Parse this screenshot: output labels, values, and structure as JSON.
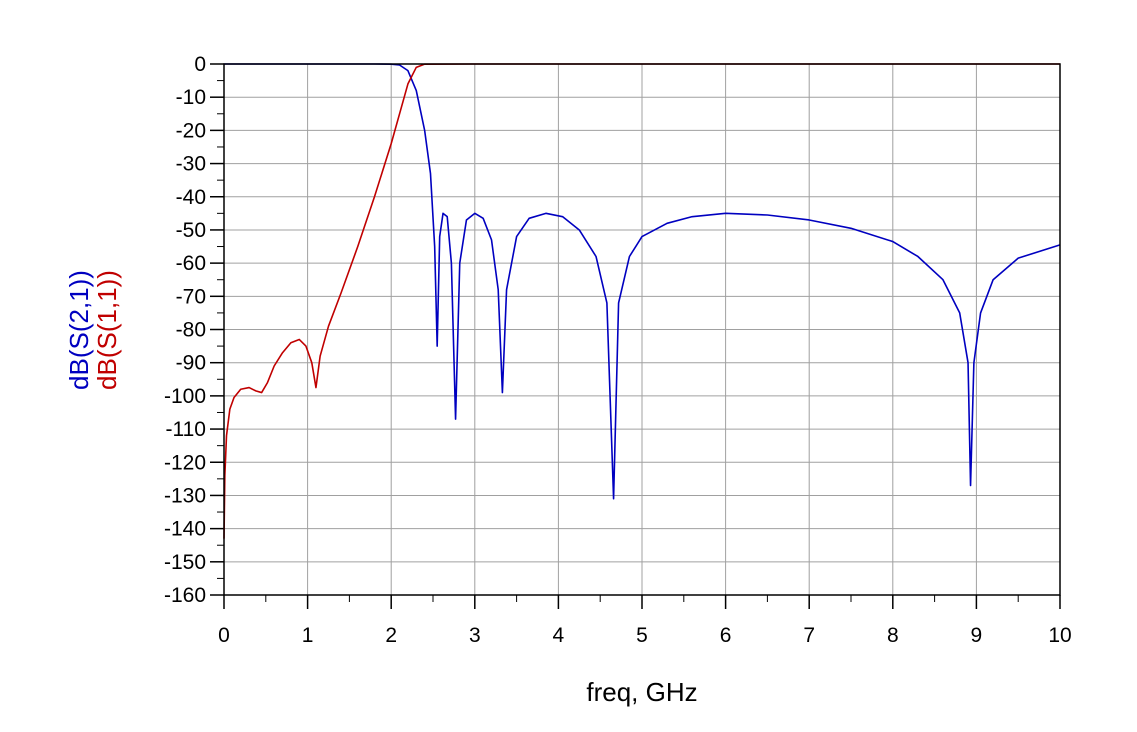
{
  "chart_data": {
    "type": "line",
    "title": "",
    "xlabel": "freq, GHz",
    "ylabel_series_names": [
      "dB(S(2,1))",
      "dB(S(1,1))"
    ],
    "xlim": [
      0,
      10
    ],
    "ylim": [
      -160,
      0
    ],
    "x_ticks": [
      0,
      1,
      2,
      3,
      4,
      5,
      6,
      7,
      8,
      9,
      10
    ],
    "y_ticks": [
      0,
      -10,
      -20,
      -30,
      -40,
      -50,
      -60,
      -70,
      -80,
      -90,
      -100,
      -110,
      -120,
      -130,
      -140,
      -150,
      -160
    ],
    "x_tick_labels": [
      "0",
      "1",
      "2",
      "3",
      "4",
      "5",
      "6",
      "7",
      "8",
      "9",
      "10"
    ],
    "y_tick_labels": [
      "0",
      "-10",
      "-20",
      "-30",
      "-40",
      "-50",
      "-60",
      "-70",
      "-80",
      "-90",
      "-100",
      "-110",
      "-120",
      "-130",
      "-140",
      "-150",
      "-160"
    ],
    "grid": true,
    "series": [
      {
        "name": "dB(S(2,1))",
        "color": "#0000c0",
        "points": [
          [
            0.0,
            0.0
          ],
          [
            1.0,
            0.0
          ],
          [
            1.8,
            0.0
          ],
          [
            2.0,
            -0.05
          ],
          [
            2.1,
            -0.3
          ],
          [
            2.2,
            -2.0
          ],
          [
            2.3,
            -8.0
          ],
          [
            2.4,
            -20.0
          ],
          [
            2.47,
            -33.0
          ],
          [
            2.52,
            -55.0
          ],
          [
            2.55,
            -85.0
          ],
          [
            2.58,
            -52.0
          ],
          [
            2.62,
            -45.0
          ],
          [
            2.67,
            -46.0
          ],
          [
            2.72,
            -60.0
          ],
          [
            2.77,
            -107.0
          ],
          [
            2.82,
            -60.0
          ],
          [
            2.9,
            -47.0
          ],
          [
            3.0,
            -45.0
          ],
          [
            3.1,
            -46.5
          ],
          [
            3.2,
            -53.0
          ],
          [
            3.28,
            -68.0
          ],
          [
            3.33,
            -99.0
          ],
          [
            3.38,
            -68.0
          ],
          [
            3.5,
            -52.0
          ],
          [
            3.65,
            -46.5
          ],
          [
            3.85,
            -45.0
          ],
          [
            4.05,
            -46.0
          ],
          [
            4.25,
            -50.0
          ],
          [
            4.45,
            -58.0
          ],
          [
            4.58,
            -72.0
          ],
          [
            4.66,
            -131.0
          ],
          [
            4.72,
            -72.0
          ],
          [
            4.85,
            -58.0
          ],
          [
            5.0,
            -52.0
          ],
          [
            5.3,
            -48.0
          ],
          [
            5.6,
            -46.0
          ],
          [
            6.0,
            -45.0
          ],
          [
            6.5,
            -45.5
          ],
          [
            7.0,
            -47.0
          ],
          [
            7.5,
            -49.5
          ],
          [
            8.0,
            -53.5
          ],
          [
            8.3,
            -58.0
          ],
          [
            8.6,
            -65.0
          ],
          [
            8.8,
            -75.0
          ],
          [
            8.9,
            -90.0
          ],
          [
            8.93,
            -127.0
          ],
          [
            8.97,
            -90.0
          ],
          [
            9.05,
            -75.0
          ],
          [
            9.2,
            -65.0
          ],
          [
            9.5,
            -58.5
          ],
          [
            10.0,
            -54.5
          ]
        ]
      },
      {
        "name": "dB(S(1,1))",
        "color": "#c00000",
        "points": [
          [
            0.0,
            -143.0
          ],
          [
            0.01,
            -124.0
          ],
          [
            0.03,
            -112.0
          ],
          [
            0.07,
            -104.0
          ],
          [
            0.12,
            -100.5
          ],
          [
            0.2,
            -98.0
          ],
          [
            0.3,
            -97.5
          ],
          [
            0.38,
            -98.5
          ],
          [
            0.45,
            -99.0
          ],
          [
            0.52,
            -96.0
          ],
          [
            0.6,
            -91.0
          ],
          [
            0.7,
            -87.0
          ],
          [
            0.8,
            -84.0
          ],
          [
            0.9,
            -83.0
          ],
          [
            0.98,
            -85.0
          ],
          [
            1.05,
            -90.0
          ],
          [
            1.1,
            -97.5
          ],
          [
            1.15,
            -88.0
          ],
          [
            1.25,
            -79.0
          ],
          [
            1.4,
            -69.0
          ],
          [
            1.6,
            -55.0
          ],
          [
            1.8,
            -40.0
          ],
          [
            2.0,
            -24.0
          ],
          [
            2.1,
            -15.0
          ],
          [
            2.2,
            -6.0
          ],
          [
            2.3,
            -1.0
          ],
          [
            2.4,
            -0.05
          ],
          [
            3.0,
            0.0
          ],
          [
            10.0,
            0.0
          ]
        ]
      }
    ]
  }
}
